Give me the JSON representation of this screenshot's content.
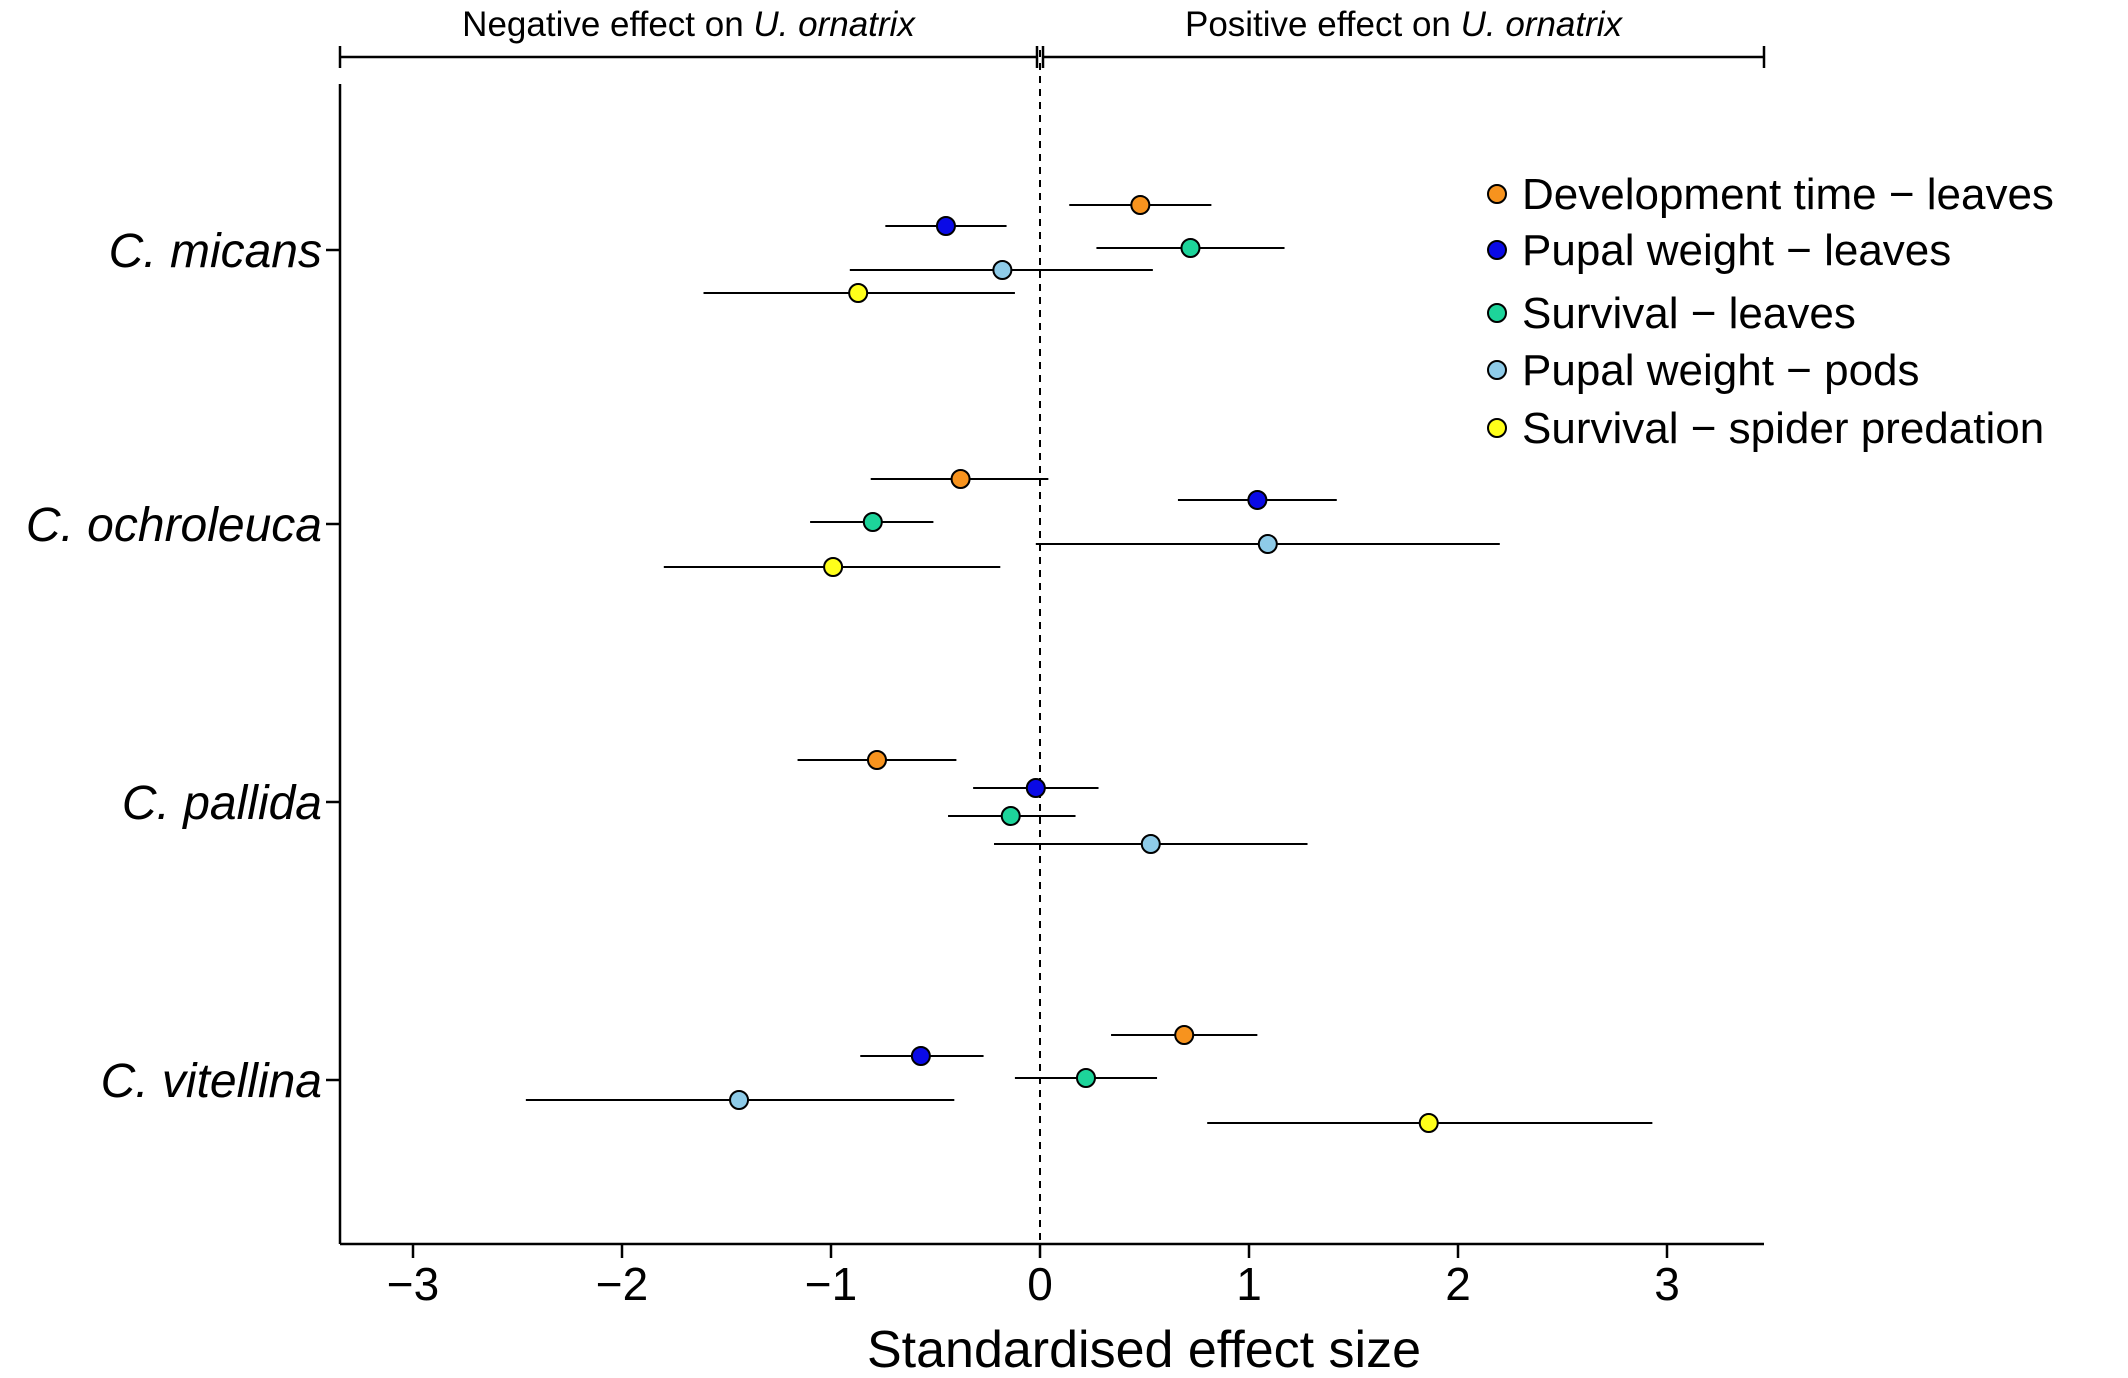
{
  "chart_data": {
    "type": "scatter",
    "subtype": "forest-plot",
    "title": "",
    "xlabel": "Standardised effect size",
    "ylabel": "",
    "xlim": [
      -3.35,
      3.45
    ],
    "xticks": [
      -3,
      -2,
      -1,
      0,
      1,
      2,
      3
    ],
    "xtick_labels": [
      "−3",
      "−2",
      "−1",
      "0",
      "1",
      "2",
      "3"
    ],
    "reference_line": 0,
    "grid": false,
    "legend_position": "top-right",
    "categories": [
      "C. micans",
      "C. ochroleuca",
      "C. pallida",
      "C. vitellina"
    ],
    "effect_brackets": [
      {
        "prefix": "Negative effect on ",
        "species": "U. ornatrix",
        "from": -3.35,
        "to": 0
      },
      {
        "prefix": "Positive effect on ",
        "species": "U. ornatrix",
        "from": 0,
        "to": 3.45
      }
    ],
    "series": [
      {
        "name": "Development time − leaves",
        "color": "#f7931e",
        "points": [
          {
            "category": "C. micans",
            "estimate": 0.48,
            "lower": 0.14,
            "upper": 0.82
          },
          {
            "category": "C. ochroleuca",
            "estimate": -0.38,
            "lower": -0.81,
            "upper": 0.04
          },
          {
            "category": "C. pallida",
            "estimate": -0.78,
            "lower": -1.16,
            "upper": -0.4
          },
          {
            "category": "C. vitellina",
            "estimate": 0.69,
            "lower": 0.34,
            "upper": 1.04
          }
        ]
      },
      {
        "name": "Pupal weight − leaves",
        "color": "#0a0ae6",
        "points": [
          {
            "category": "C. micans",
            "estimate": -0.45,
            "lower": -0.74,
            "upper": -0.16
          },
          {
            "category": "C. ochroleuca",
            "estimate": 1.04,
            "lower": 0.66,
            "upper": 1.42
          },
          {
            "category": "C. pallida",
            "estimate": -0.02,
            "lower": -0.32,
            "upper": 0.28
          },
          {
            "category": "C. vitellina",
            "estimate": -0.57,
            "lower": -0.86,
            "upper": -0.27
          }
        ]
      },
      {
        "name": "Survival − leaves",
        "color": "#1dd49a",
        "points": [
          {
            "category": "C. micans",
            "estimate": 0.72,
            "lower": 0.27,
            "upper": 1.17
          },
          {
            "category": "C. ochroleuca",
            "estimate": -0.8,
            "lower": -1.1,
            "upper": -0.51
          },
          {
            "category": "C. pallida",
            "estimate": -0.14,
            "lower": -0.44,
            "upper": 0.17
          },
          {
            "category": "C. vitellina",
            "estimate": 0.22,
            "lower": -0.12,
            "upper": 0.56
          }
        ]
      },
      {
        "name": "Pupal weight − pods",
        "color": "#8ecbe8",
        "points": [
          {
            "category": "C. micans",
            "estimate": -0.18,
            "lower": -0.91,
            "upper": 0.54
          },
          {
            "category": "C. ochroleuca",
            "estimate": 1.09,
            "lower": -0.02,
            "upper": 2.2
          },
          {
            "category": "C. pallida",
            "estimate": 0.53,
            "lower": -0.22,
            "upper": 1.28
          },
          {
            "category": "C. vitellina",
            "estimate": -1.44,
            "lower": -2.46,
            "upper": -0.41
          }
        ]
      },
      {
        "name": "Survival − spider predation",
        "color": "#ffff1a",
        "points": [
          {
            "category": "C. micans",
            "estimate": -0.87,
            "lower": -1.61,
            "upper": -0.12
          },
          {
            "category": "C. ochroleuca",
            "estimate": -0.99,
            "lower": -1.8,
            "upper": -0.19
          },
          {
            "category": "C. vitellina",
            "estimate": 1.86,
            "lower": 0.8,
            "upper": 2.93
          }
        ]
      }
    ]
  }
}
